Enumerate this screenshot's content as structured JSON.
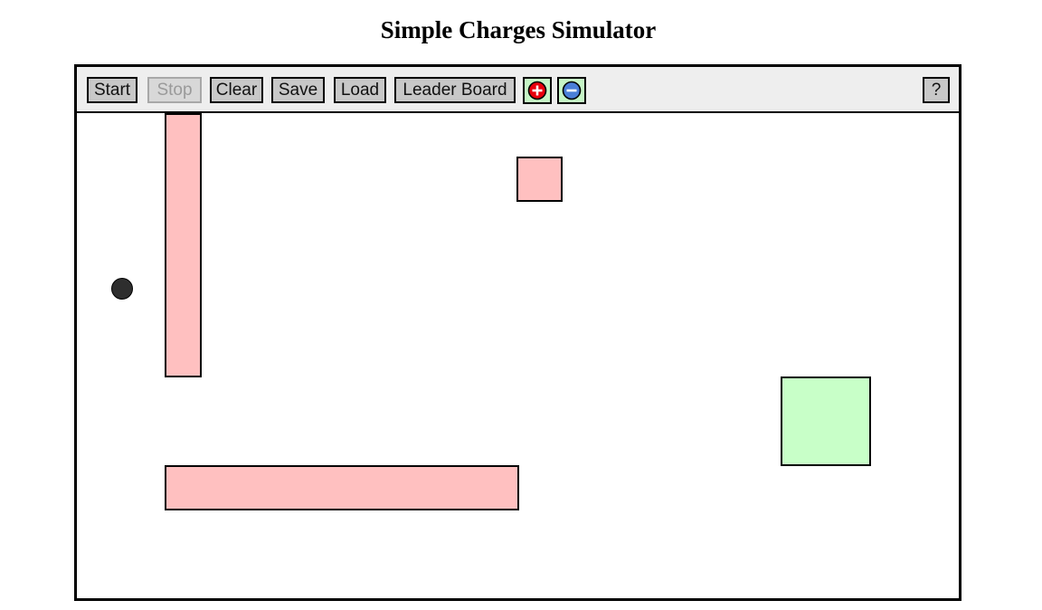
{
  "page": {
    "title": "Simple Charges Simulator"
  },
  "toolbar": {
    "start_label": "Start",
    "stop_label": "Stop",
    "clear_label": "Clear",
    "save_label": "Save",
    "load_label": "Load",
    "leaderboard_label": "Leader Board",
    "help_label": "?",
    "positive_charge_icon": "plus-circle-icon",
    "negative_charge_icon": "minus-circle-icon",
    "stop_enabled": false
  },
  "colors": {
    "obstacle": "#ffc0c0",
    "goal": "#c8ffc8",
    "ball": "#2e2e2e",
    "positive_charge": "#e8000b",
    "negative_charge": "#4a7fd8",
    "charge_button_bg": "#c6f6c6"
  }
}
